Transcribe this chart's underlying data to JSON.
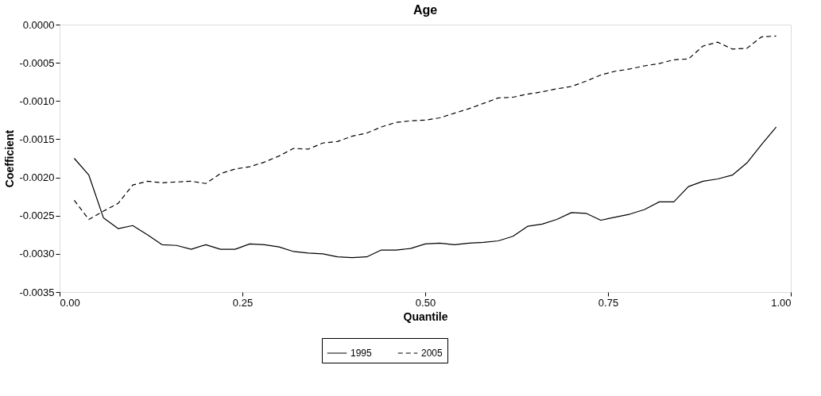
{
  "chart_data": {
    "type": "line",
    "title": "Age",
    "xlabel": "Quantile",
    "ylabel": "Coefficient",
    "x": [
      0.02,
      0.04,
      0.06,
      0.08,
      0.1,
      0.12,
      0.14,
      0.16,
      0.18,
      0.2,
      0.22,
      0.24,
      0.26,
      0.28,
      0.3,
      0.32,
      0.34,
      0.36,
      0.38,
      0.4,
      0.42,
      0.44,
      0.46,
      0.48,
      0.5,
      0.52,
      0.54,
      0.56,
      0.58,
      0.6,
      0.62,
      0.64,
      0.66,
      0.68,
      0.7,
      0.72,
      0.74,
      0.76,
      0.78,
      0.8,
      0.82,
      0.84,
      0.86,
      0.88,
      0.9,
      0.92,
      0.94,
      0.96,
      0.98
    ],
    "series": [
      {
        "name": "1995",
        "color": "#000000",
        "line_style": "solid",
        "values": [
          -0.00175,
          -0.00197,
          -0.00253,
          -0.00267,
          -0.00263,
          -0.00275,
          -0.00288,
          -0.00289,
          -0.00294,
          -0.00288,
          -0.00294,
          -0.00294,
          -0.00287,
          -0.00288,
          -0.00291,
          -0.00297,
          -0.00299,
          -0.003,
          -0.00304,
          -0.00305,
          -0.00304,
          -0.00295,
          -0.00295,
          -0.00293,
          -0.00287,
          -0.00286,
          -0.00288,
          -0.00286,
          -0.00285,
          -0.00283,
          -0.00277,
          -0.00264,
          -0.00261,
          -0.00255,
          -0.00246,
          -0.00247,
          -0.00256,
          -0.00252,
          -0.00248,
          -0.00242,
          -0.00232,
          -0.00232,
          -0.00212,
          -0.00205,
          -0.00202,
          -0.00197,
          -0.00181,
          -0.00157,
          -0.00134
        ]
      },
      {
        "name": "2005",
        "color": "#000000",
        "line_style": "dashed",
        "values": [
          -0.0023,
          -0.00255,
          -0.00244,
          -0.00234,
          -0.0021,
          -0.00205,
          -0.00207,
          -0.00206,
          -0.00205,
          -0.00208,
          -0.00195,
          -0.00189,
          -0.00186,
          -0.0018,
          -0.00172,
          -0.00162,
          -0.00163,
          -0.00155,
          -0.00153,
          -0.00146,
          -0.00142,
          -0.00134,
          -0.00128,
          -0.00126,
          -0.00125,
          -0.00122,
          -0.00116,
          -0.0011,
          -0.00103,
          -0.00096,
          -0.00095,
          -0.00091,
          -0.00088,
          -0.00084,
          -0.00081,
          -0.00074,
          -0.00066,
          -0.00061,
          -0.00058,
          -0.00054,
          -0.00051,
          -0.00046,
          -0.00045,
          -0.00028,
          -0.00023,
          -0.00032,
          -0.00031,
          -0.00016,
          -0.00015
        ]
      }
    ],
    "xlim": [
      0,
      1
    ],
    "xticks": [
      {
        "value": 0,
        "label": "0.00"
      },
      {
        "value": 0.25,
        "label": "0.25"
      },
      {
        "value": 0.5,
        "label": "0.50"
      },
      {
        "value": 0.75,
        "label": "0.75"
      },
      {
        "value": 1,
        "label": "1.00"
      }
    ],
    "ylim": [
      -0.0035,
      0
    ],
    "yticks": [
      {
        "value": -0.0035,
        "label": "-0.0035"
      },
      {
        "value": -0.003,
        "label": "-0.0030"
      },
      {
        "value": -0.0025,
        "label": "-0.0025"
      },
      {
        "value": -0.002,
        "label": "-0.0020"
      },
      {
        "value": -0.0015,
        "label": "-0.0015"
      },
      {
        "value": -0.001,
        "label": "-0.0010"
      },
      {
        "value": -0.0005,
        "label": "-0.0005"
      },
      {
        "value": 0,
        "label": "0.0000"
      }
    ],
    "grid": false,
    "legend": "bottom"
  }
}
